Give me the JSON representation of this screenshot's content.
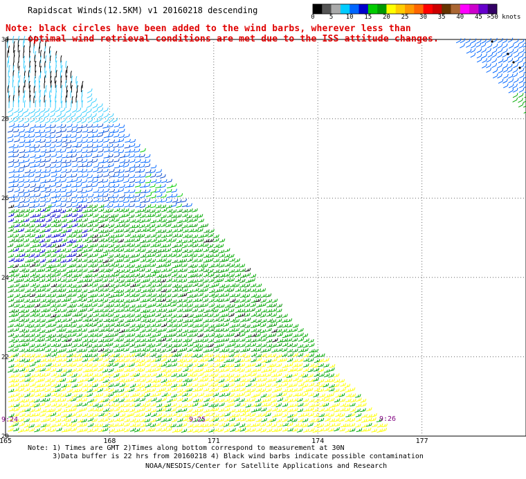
{
  "title": "Rapidscat Winds(12.5KM) v1 20160218 descending",
  "note_line1": "Note: black circles have been added to the wind barbs, wherever less than",
  "note_line2": "    optimal wind retrieval conditions are met due to the ISS attitude changes.",
  "footnote_line1": "Note: 1) Times are GMT 2)Times along bottom correspond to measurement at 30N",
  "footnote_line2": "      3)Data buffer is 22 hrs from 20160218 4) Black wind barbs indicate possible contamination",
  "credit": "NOAA/NESDIS/Center for Satellite Applications and Research",
  "legend": {
    "labels": [
      "0",
      "5",
      "10",
      "15",
      "20",
      "25",
      "30",
      "35",
      "40",
      "45",
      ">50 knots"
    ],
    "colors": [
      "#000000",
      "#555555",
      "#aaaaaa",
      "#00ccff",
      "#0066ff",
      "#0000cc",
      "#00cc00",
      "#009900",
      "#ffff00",
      "#ffcc00",
      "#ff9900",
      "#ff6600",
      "#ff0000",
      "#cc0000",
      "#663300",
      "#aa6633",
      "#ff00ff",
      "#cc00cc",
      "#6600cc",
      "#330066"
    ]
  },
  "map": {
    "lon_ticks": [
      "165",
      "168",
      "171",
      "174",
      "177"
    ],
    "lat_ticks": [
      "30",
      "28",
      "26",
      "24",
      "22",
      "20"
    ],
    "time_labels": [
      "9:24",
      "9:25",
      "9:26"
    ],
    "lon_range": [
      165,
      180
    ],
    "lat_range": [
      20,
      30
    ]
  }
}
